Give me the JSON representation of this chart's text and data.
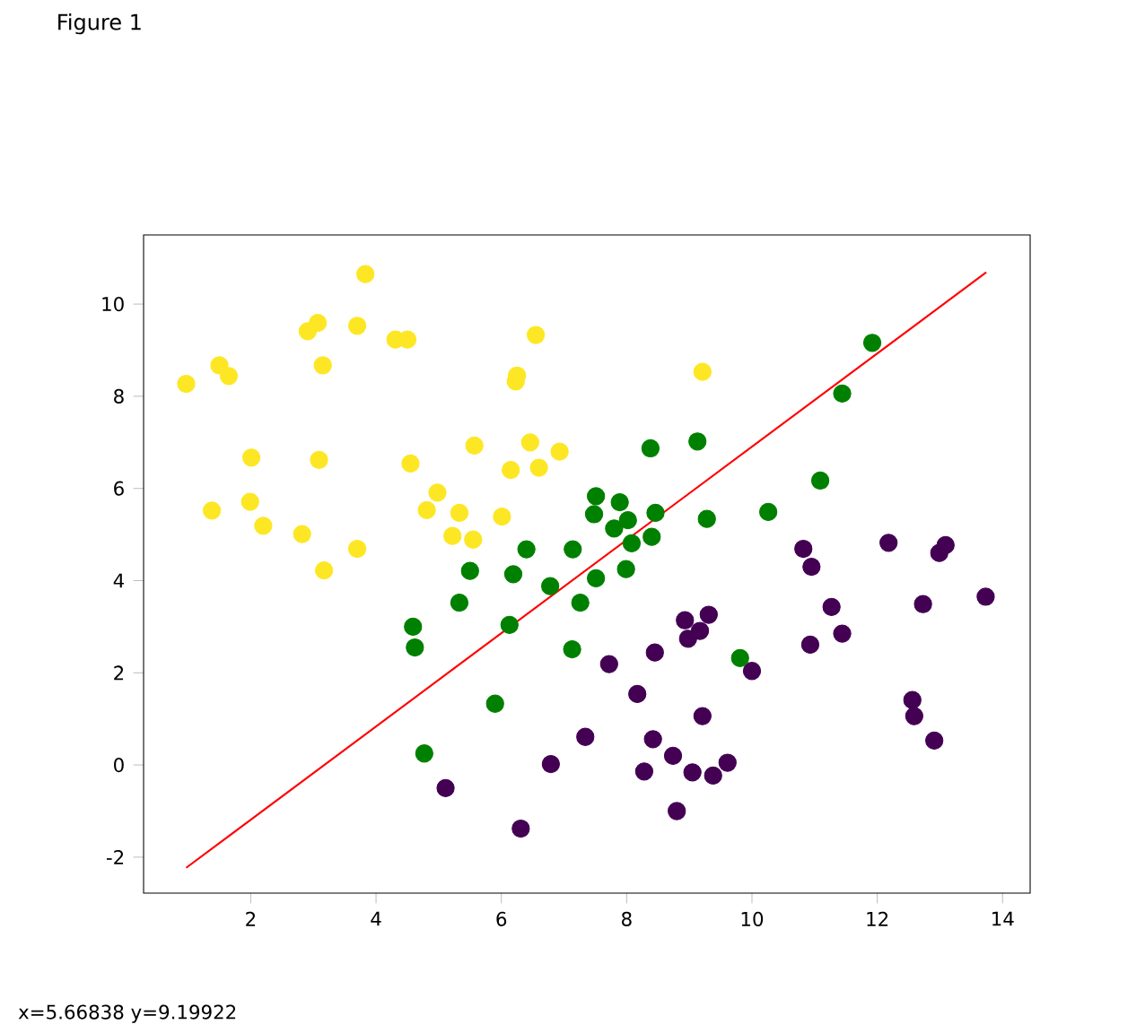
{
  "chart_data": {
    "type": "scatter",
    "title": "Figure 1",
    "annotations": [
      "x=5.66838    y=9.19922"
    ],
    "xlim": [
      0.29,
      14.44
    ],
    "ylim": [
      -2.78,
      11.5
    ],
    "xticks": [
      2,
      4,
      6,
      8,
      10,
      12,
      14
    ],
    "yticks": [
      -2,
      0,
      2,
      4,
      6,
      8,
      10
    ],
    "grid": false,
    "marker": "circle",
    "series": [
      {
        "color": "#fde725",
        "x": [
          0.97,
          1.5,
          1.65,
          1.38,
          1.99,
          2.01,
          2.2,
          2.82,
          2.91,
          3.07,
          3.15,
          3.09,
          3.17,
          3.7,
          3.83,
          3.7,
          4.31,
          4.5,
          4.55,
          4.98,
          4.81,
          5.22,
          5.33,
          5.55,
          5.57,
          6.01,
          6.15,
          6.25,
          6.23,
          6.46,
          6.55,
          6.6,
          6.93,
          9.21
        ],
        "values": [
          8.27,
          8.67,
          8.44,
          5.52,
          5.71,
          6.67,
          5.19,
          5.01,
          9.41,
          9.59,
          8.67,
          6.62,
          4.22,
          9.53,
          10.65,
          4.69,
          9.23,
          9.23,
          6.54,
          5.91,
          5.53,
          4.97,
          5.47,
          4.89,
          6.93,
          5.39,
          6.4,
          8.45,
          8.32,
          7.0,
          9.33,
          6.45,
          6.8,
          8.53
        ]
      },
      {
        "color": "#440154",
        "x": [
          10.82,
          10.95,
          12.18,
          12.99,
          13.09,
          13.73,
          12.73,
          11.27,
          11.44,
          10.93,
          8.93,
          9.31,
          9.17,
          8.98,
          10.0,
          8.45,
          7.72,
          8.17,
          9.21,
          7.34,
          8.42,
          8.74,
          9.61,
          8.28,
          9.05,
          9.38,
          8.8,
          6.79,
          12.56,
          12.59,
          12.91,
          5.11,
          6.31
        ],
        "values": [
          4.69,
          4.3,
          4.82,
          4.6,
          4.77,
          3.65,
          3.49,
          3.43,
          2.85,
          2.61,
          3.14,
          3.26,
          2.91,
          2.74,
          2.04,
          2.44,
          2.19,
          1.54,
          1.06,
          0.61,
          0.56,
          0.2,
          0.05,
          -0.14,
          -0.16,
          -0.23,
          -1.0,
          0.02,
          1.41,
          1.06,
          0.53,
          -0.5,
          -1.38
        ]
      },
      {
        "color": "#008000",
        "x": [
          11.92,
          11.44,
          9.13,
          8.38,
          11.09,
          7.51,
          7.48,
          7.89,
          8.02,
          7.8,
          8.46,
          9.28,
          10.26,
          8.08,
          8.4,
          7.99,
          7.51,
          7.14,
          6.78,
          6.4,
          5.5,
          6.19,
          7.26,
          5.33,
          6.13,
          4.59,
          4.62,
          7.13,
          5.9,
          4.77,
          9.81
        ],
        "values": [
          9.16,
          8.06,
          7.02,
          6.87,
          6.17,
          5.83,
          5.44,
          5.7,
          5.31,
          5.13,
          5.47,
          5.34,
          5.49,
          4.81,
          4.95,
          4.25,
          4.05,
          4.68,
          3.88,
          4.68,
          4.21,
          4.14,
          3.52,
          3.52,
          3.04,
          3.0,
          2.55,
          2.51,
          1.33,
          0.25,
          2.32
        ]
      },
      {
        "type": "line",
        "color": "#ff0000",
        "marker": "none",
        "x": [
          0.97,
          13.74
        ],
        "values": [
          -2.23,
          10.69
        ]
      }
    ]
  }
}
